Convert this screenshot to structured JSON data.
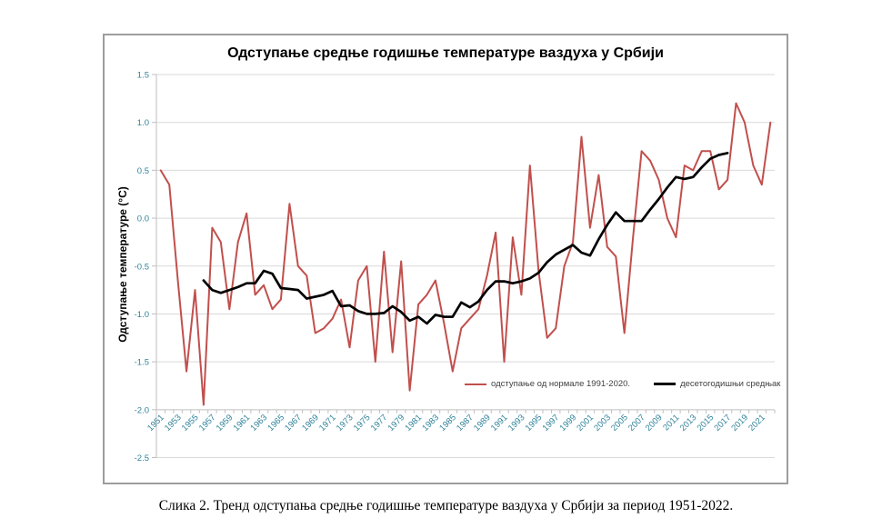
{
  "caption": {
    "text": "Слика 2. Тренд одступања средње годишње температуре ваздуха у Србији за период 1951-2022."
  },
  "chart_data": {
    "type": "line",
    "title": "Одступање средње годишње температуре ваздуха у Србији",
    "xlabel": "",
    "ylabel": "Одступање температуре (°C)",
    "ylim": [
      -2.5,
      1.5
    ],
    "y_tick_step": 0.5,
    "y_tick_labels": [
      "1.5",
      "1.0",
      "0.5",
      "0.0",
      "-0.5",
      "-1.0",
      "-1.5",
      "-2.0",
      "-2.5"
    ],
    "x_start_year": 1951,
    "x_end_year": 2022,
    "x_tick_labels": [
      "1951",
      "1953",
      "1955",
      "1957",
      "1959",
      "1961",
      "1963",
      "1965",
      "1967",
      "1969",
      "1971",
      "1973",
      "1975",
      "1977",
      "1979",
      "1981",
      "1983",
      "1985",
      "1987",
      "1989",
      "1991",
      "1993",
      "1995",
      "1997",
      "1999",
      "2001",
      "2003",
      "2005",
      "2007",
      "2009",
      "2011",
      "2013",
      "2015",
      "2017",
      "2019",
      "2021"
    ],
    "grid": true,
    "x_axis_cross_at": -2.0,
    "legend_position": "inside-bottom",
    "colors": {
      "anomaly_series": "#C0504D",
      "decadal_series": "#000000",
      "tick_label": "#31849B",
      "gridline": "#D9D9D9",
      "axis_line": "#BFBFBF",
      "chart_border": "#9D9D9D"
    },
    "series": [
      {
        "name": "одступање од нормале 1991-2020.",
        "color": "#C0504D",
        "start_year": 1951,
        "values": [
          0.5,
          0.35,
          -0.65,
          -1.6,
          -0.75,
          -1.95,
          -0.1,
          -0.25,
          -0.95,
          -0.25,
          0.05,
          -0.8,
          -0.7,
          -0.95,
          -0.85,
          0.15,
          -0.5,
          -0.6,
          -1.2,
          -1.15,
          -1.05,
          -0.85,
          -1.35,
          -0.65,
          -0.5,
          -1.5,
          -0.35,
          -1.4,
          -0.45,
          -1.8,
          -0.9,
          -0.8,
          -0.65,
          -1.1,
          -1.6,
          -1.15,
          -1.05,
          -0.95,
          -0.6,
          -0.15,
          -1.5,
          -0.2,
          -0.8,
          0.55,
          -0.55,
          -1.25,
          -1.15,
          -0.5,
          -0.25,
          0.85,
          -0.1,
          0.45,
          -0.3,
          -0.4,
          -1.2,
          -0.2,
          0.7,
          0.6,
          0.4,
          0.0,
          -0.2,
          0.55,
          0.5,
          0.7,
          0.7,
          0.3,
          0.4,
          1.2,
          1.0,
          0.55,
          0.35,
          1.0
        ]
      },
      {
        "name": "десетогодишњи средњак",
        "color": "#000000",
        "start_year": 1956,
        "values": [
          -0.65,
          -0.75,
          -0.78,
          -0.75,
          -0.72,
          -0.68,
          -0.68,
          -0.55,
          -0.58,
          -0.73,
          -0.74,
          -0.75,
          -0.84,
          -0.82,
          -0.8,
          -0.76,
          -0.92,
          -0.91,
          -0.97,
          -1.0,
          -1.0,
          -0.99,
          -0.92,
          -0.98,
          -1.07,
          -1.03,
          -1.1,
          -1.01,
          -1.03,
          -1.03,
          -0.88,
          -0.93,
          -0.87,
          -0.75,
          -0.66,
          -0.66,
          -0.68,
          -0.66,
          -0.63,
          -0.57,
          -0.46,
          -0.38,
          -0.33,
          -0.28,
          -0.36,
          -0.39,
          -0.22,
          -0.07,
          0.06,
          -0.03,
          -0.03,
          -0.03,
          0.09,
          0.2,
          0.32,
          0.43,
          0.41,
          0.43,
          0.53,
          0.62,
          0.66,
          0.68
        ]
      }
    ]
  }
}
